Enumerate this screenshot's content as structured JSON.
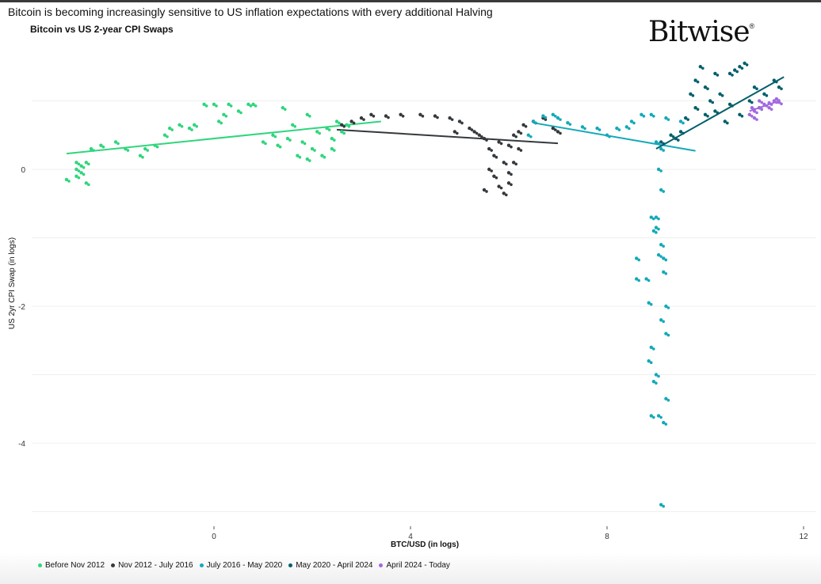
{
  "headline": "Bitcoin is becoming increasingly sensitive to US inflation expectations with every additional Halving",
  "logo_text": "Bitwise",
  "logo_mark": "®",
  "chart_data": {
    "type": "scatter",
    "title": "Bitcoin vs US 2-year CPI Swaps",
    "xlabel": "BTC/USD (in logs)",
    "ylabel": "US 2yr CPI Swap (in logs)",
    "xlim": [
      -3.8,
      12.3
    ],
    "ylim": [
      -5.0,
      1.6
    ],
    "xticks": [
      0,
      4,
      8,
      12
    ],
    "yticks": [
      0,
      -2,
      -4
    ],
    "grid": true,
    "legend_position": "bottom",
    "series": [
      {
        "name": "Before Nov 2012",
        "color": "#2fd67c",
        "trend": [
          [
            -3.0,
            0.23
          ],
          [
            3.4,
            0.7
          ]
        ],
        "points": [
          [
            -3.0,
            -0.15
          ],
          [
            -2.8,
            -0.1
          ],
          [
            -2.8,
            0.0
          ],
          [
            -2.8,
            0.1
          ],
          [
            -2.7,
            -0.05
          ],
          [
            -2.7,
            0.05
          ],
          [
            -2.6,
            -0.2
          ],
          [
            -2.6,
            0.1
          ],
          [
            -2.5,
            0.3
          ],
          [
            -2.3,
            0.35
          ],
          [
            -2.0,
            0.4
          ],
          [
            -1.8,
            0.3
          ],
          [
            -1.5,
            0.2
          ],
          [
            -1.4,
            0.3
          ],
          [
            -1.2,
            0.35
          ],
          [
            -1.0,
            0.5
          ],
          [
            -0.9,
            0.6
          ],
          [
            -0.7,
            0.65
          ],
          [
            -0.5,
            0.6
          ],
          [
            -0.4,
            0.65
          ],
          [
            -0.2,
            0.95
          ],
          [
            0.0,
            0.95
          ],
          [
            0.1,
            0.7
          ],
          [
            0.2,
            0.8
          ],
          [
            0.3,
            0.95
          ],
          [
            0.5,
            0.85
          ],
          [
            0.8,
            0.95
          ],
          [
            1.0,
            0.4
          ],
          [
            1.2,
            0.5
          ],
          [
            1.3,
            0.35
          ],
          [
            1.5,
            0.45
          ],
          [
            1.6,
            0.65
          ],
          [
            1.8,
            0.4
          ],
          [
            1.9,
            0.8
          ],
          [
            2.0,
            0.3
          ],
          [
            2.1,
            0.55
          ],
          [
            2.2,
            0.2
          ],
          [
            2.3,
            0.6
          ],
          [
            2.4,
            0.45
          ],
          [
            2.5,
            0.7
          ],
          [
            2.6,
            0.55
          ],
          [
            2.7,
            0.65
          ],
          [
            1.7,
            0.2
          ],
          [
            1.9,
            0.15
          ],
          [
            2.4,
            0.3
          ],
          [
            1.4,
            0.9
          ],
          [
            0.7,
            0.95
          ]
        ]
      },
      {
        "name": "Nov 2012 - July 2016",
        "color": "#34393d",
        "trend": [
          [
            2.5,
            0.58
          ],
          [
            7.0,
            0.38
          ]
        ],
        "points": [
          [
            2.6,
            0.65
          ],
          [
            2.8,
            0.7
          ],
          [
            3.0,
            0.75
          ],
          [
            3.2,
            0.8
          ],
          [
            3.5,
            0.78
          ],
          [
            3.8,
            0.8
          ],
          [
            4.2,
            0.8
          ],
          [
            4.5,
            0.78
          ],
          [
            4.8,
            0.75
          ],
          [
            5.0,
            0.7
          ],
          [
            4.9,
            0.55
          ],
          [
            5.2,
            0.6
          ],
          [
            5.4,
            0.5
          ],
          [
            5.5,
            0.45
          ],
          [
            5.6,
            0.3
          ],
          [
            5.7,
            0.2
          ],
          [
            5.6,
            0.0
          ],
          [
            5.7,
            -0.1
          ],
          [
            5.8,
            -0.25
          ],
          [
            5.9,
            -0.35
          ],
          [
            6.0,
            -0.2
          ],
          [
            5.9,
            0.1
          ],
          [
            6.0,
            0.35
          ],
          [
            6.1,
            0.5
          ],
          [
            6.2,
            0.3
          ],
          [
            6.1,
            0.1
          ],
          [
            5.8,
            0.4
          ],
          [
            6.3,
            0.65
          ],
          [
            6.5,
            0.7
          ],
          [
            6.7,
            0.75
          ],
          [
            6.9,
            0.6
          ],
          [
            7.0,
            0.55
          ],
          [
            5.5,
            -0.3
          ],
          [
            6.0,
            -0.05
          ],
          [
            6.2,
            0.55
          ],
          [
            5.3,
            0.55
          ]
        ]
      },
      {
        "name": "July 2016 - May 2020",
        "color": "#13a9b9",
        "trend": [
          [
            6.5,
            0.68
          ],
          [
            9.8,
            0.27
          ]
        ],
        "points": [
          [
            6.4,
            0.5
          ],
          [
            6.5,
            0.7
          ],
          [
            6.7,
            0.78
          ],
          [
            6.9,
            0.8
          ],
          [
            7.0,
            0.75
          ],
          [
            7.2,
            0.68
          ],
          [
            7.5,
            0.62
          ],
          [
            7.8,
            0.6
          ],
          [
            8.0,
            0.5
          ],
          [
            8.2,
            0.6
          ],
          [
            8.4,
            0.62
          ],
          [
            8.5,
            0.7
          ],
          [
            8.7,
            0.8
          ],
          [
            8.9,
            0.8
          ],
          [
            9.2,
            0.75
          ],
          [
            9.5,
            0.7
          ],
          [
            9.0,
            0.4
          ],
          [
            9.1,
            0.3
          ],
          [
            9.05,
            0.0
          ],
          [
            9.1,
            -0.3
          ],
          [
            9.0,
            -0.7
          ],
          [
            8.95,
            -0.9
          ],
          [
            9.1,
            -1.1
          ],
          [
            9.15,
            -1.3
          ],
          [
            8.6,
            -1.3
          ],
          [
            8.6,
            -1.6
          ],
          [
            8.8,
            -1.6
          ],
          [
            9.15,
            -1.5
          ],
          [
            8.85,
            -1.95
          ],
          [
            9.2,
            -2.0
          ],
          [
            9.1,
            -2.2
          ],
          [
            9.2,
            -2.4
          ],
          [
            8.9,
            -2.6
          ],
          [
            8.85,
            -2.8
          ],
          [
            9.0,
            -3.0
          ],
          [
            8.95,
            -3.1
          ],
          [
            9.2,
            -3.35
          ],
          [
            8.9,
            -3.6
          ],
          [
            9.05,
            -3.6
          ],
          [
            9.15,
            -3.7
          ],
          [
            9.1,
            -4.9
          ],
          [
            9.0,
            -0.85
          ],
          [
            8.9,
            -0.7
          ],
          [
            9.05,
            -1.25
          ]
        ]
      },
      {
        "name": "May 2020 - April 2024",
        "color": "#005f6b",
        "trend": [
          [
            9.0,
            0.3
          ],
          [
            11.6,
            1.35
          ]
        ],
        "points": [
          [
            9.1,
            0.4
          ],
          [
            9.3,
            0.5
          ],
          [
            9.5,
            0.55
          ],
          [
            9.6,
            0.75
          ],
          [
            9.8,
            0.9
          ],
          [
            9.7,
            1.1
          ],
          [
            9.8,
            1.3
          ],
          [
            9.9,
            1.5
          ],
          [
            10.0,
            1.2
          ],
          [
            10.1,
            1.0
          ],
          [
            10.2,
            0.85
          ],
          [
            10.3,
            1.1
          ],
          [
            10.5,
            1.4
          ],
          [
            10.6,
            1.45
          ],
          [
            10.7,
            1.5
          ],
          [
            10.8,
            1.55
          ],
          [
            10.5,
            0.95
          ],
          [
            10.7,
            0.8
          ],
          [
            10.9,
            1.0
          ],
          [
            11.0,
            1.2
          ],
          [
            11.2,
            1.1
          ],
          [
            11.4,
            1.3
          ],
          [
            11.5,
            1.2
          ],
          [
            10.4,
            0.7
          ],
          [
            10.0,
            0.8
          ],
          [
            9.4,
            0.45
          ],
          [
            10.2,
            1.4
          ],
          [
            11.1,
            0.9
          ]
        ]
      },
      {
        "name": "April 2024 - Today",
        "color": "#a368e0",
        "trend": [
          [
            10.9,
            0.85
          ],
          [
            11.5,
            1.0
          ]
        ],
        "points": [
          [
            10.9,
            0.8
          ],
          [
            11.0,
            0.85
          ],
          [
            11.1,
            0.9
          ],
          [
            11.2,
            0.95
          ],
          [
            11.3,
            0.97
          ],
          [
            11.4,
            1.0
          ],
          [
            11.5,
            0.98
          ],
          [
            11.0,
            0.75
          ],
          [
            11.1,
            1.0
          ],
          [
            11.3,
            0.9
          ],
          [
            11.45,
            1.03
          ],
          [
            10.95,
            0.9
          ]
        ]
      }
    ]
  }
}
